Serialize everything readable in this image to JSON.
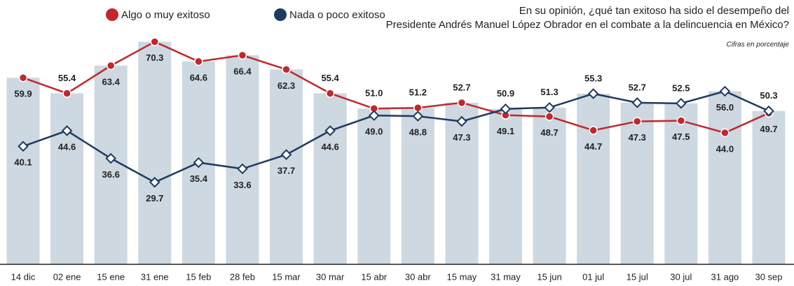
{
  "chart_data": {
    "type": "line",
    "title": "En su opinión, ¿qué tan exitoso ha sido el desempeño del Presidente Andrés Manuel López Obrador en el combate a la delincuencia en México?",
    "subtitle": "Cifras en porcentaje",
    "categories": [
      "14 dic",
      "02 ene",
      "15 ene",
      "31 ene",
      "15 feb",
      "28 feb",
      "15 mar",
      "30 mar",
      "15 abr",
      "30 abr",
      "15 may",
      "31 may",
      "15 jun",
      "01 jul",
      "15 jul",
      "30 jul",
      "31 ago",
      "30 sep"
    ],
    "series": [
      {
        "name": "Algo o muy exitoso",
        "color": "#c1272d",
        "values": [
          59.9,
          55.4,
          63.4,
          70.3,
          64.6,
          66.4,
          62.3,
          55.4,
          51.0,
          51.2,
          52.7,
          49.1,
          48.7,
          44.7,
          47.3,
          47.5,
          44.0,
          49.7
        ],
        "value_labels": [
          "59.9",
          "55.4",
          "63.4",
          "70.3",
          "64.6",
          "66.4",
          "62.3",
          "55.4",
          "51.0",
          "51.2",
          "52.7",
          "49.1",
          "48.7",
          "44.7",
          "47.3",
          "47.5",
          "44.0",
          "49.7"
        ]
      },
      {
        "name": "Nada o poco exitoso",
        "color": "#1f3a60",
        "values": [
          40.1,
          44.6,
          36.6,
          29.7,
          35.4,
          33.6,
          37.7,
          44.6,
          49.0,
          48.8,
          47.3,
          50.9,
          51.3,
          55.3,
          52.7,
          52.5,
          56.0,
          50.3
        ],
        "value_labels": [
          "40.1",
          "44.6",
          "36.6",
          "29.7",
          "35.4",
          "33.6",
          "37.7",
          "44.6",
          "49.0",
          "48.8",
          "47.3",
          "50.9",
          "51.3",
          "55.3",
          "52.7",
          "52.5",
          "56.0",
          "50.3"
        ]
      }
    ],
    "ylim": [
      6,
      76
    ],
    "bar_color": "#cdd8e0"
  }
}
